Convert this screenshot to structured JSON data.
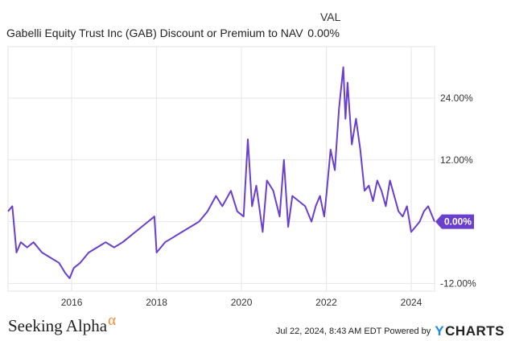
{
  "header": {
    "column_label": "VAL",
    "series_name": "Gabelli Equity Trust Inc (GAB) Discount or Premium to NAV",
    "series_value": "0.00%"
  },
  "chart_data": {
    "type": "line",
    "title": "Gabelli Equity Trust Inc (GAB) Discount or Premium to NAV",
    "x_ticks": [
      "2016",
      "2018",
      "2020",
      "2022",
      "2024"
    ],
    "y_ticks": [
      "24.00%",
      "12.00%",
      "0.00%",
      "-12.00%"
    ],
    "y_tick_values": [
      24,
      12,
      0,
      -12
    ],
    "xlim": [
      2014.5,
      2024.55
    ],
    "ylim": [
      -13.5,
      34
    ],
    "grid": true,
    "line_color": "#6a3fd0",
    "last_value_label": "0.00%",
    "series": [
      {
        "x": [
          2014.5,
          2014.6,
          2014.7,
          2014.8,
          2014.95,
          2015.1,
          2015.3,
          2015.5,
          2015.7,
          2015.85,
          2015.95,
          2016.05,
          2016.2,
          2016.4,
          2016.6,
          2016.8,
          2017.0,
          2017.2,
          2017.35,
          2017.5,
          2017.65,
          2017.8,
          2017.95,
          2018.0,
          2018.2,
          2018.4,
          2018.6,
          2018.8,
          2019.0,
          2019.2,
          2019.4,
          2019.55,
          2019.75,
          2019.9,
          2020.05,
          2020.15,
          2020.25,
          2020.35,
          2020.5,
          2020.6,
          2020.75,
          2020.9,
          2021.0,
          2021.1,
          2021.2,
          2021.35,
          2021.5,
          2021.65,
          2021.75,
          2021.85,
          2021.95,
          2022.0,
          2022.1,
          2022.2,
          2022.3,
          2022.4,
          2022.45,
          2022.5,
          2022.6,
          2022.7,
          2022.8,
          2022.9,
          2023.0,
          2023.1,
          2023.2,
          2023.3,
          2023.4,
          2023.5,
          2023.6,
          2023.7,
          2023.8,
          2023.9,
          2024.0,
          2024.1,
          2024.2,
          2024.3,
          2024.4,
          2024.55
        ],
        "y": [
          2,
          3,
          -6,
          -4,
          -5,
          -4,
          -6,
          -7,
          -8,
          -10,
          -11,
          -9,
          -8,
          -6,
          -5,
          -4,
          -5,
          -4,
          -3,
          -2,
          -1,
          0,
          1,
          -6,
          -4,
          -3,
          -2,
          -1,
          0,
          2,
          5,
          3,
          6,
          2,
          1,
          16,
          3,
          7,
          -2,
          8,
          6,
          1,
          12,
          -1,
          5,
          4,
          3,
          0,
          3,
          5,
          1,
          5,
          14,
          10,
          22,
          30,
          20,
          27,
          15,
          20,
          14,
          6,
          7,
          4,
          8,
          6,
          3,
          8,
          5,
          2,
          1,
          3,
          -2,
          -1,
          0,
          2,
          3,
          0
        ]
      }
    ]
  },
  "footer": {
    "brand": "Seeking Alpha",
    "brand_mark": "α",
    "timestamp": "Jul 22, 2024, 8:43 AM EDT Powered by",
    "logo_y": "Y",
    "logo_text": "CHARTS"
  }
}
